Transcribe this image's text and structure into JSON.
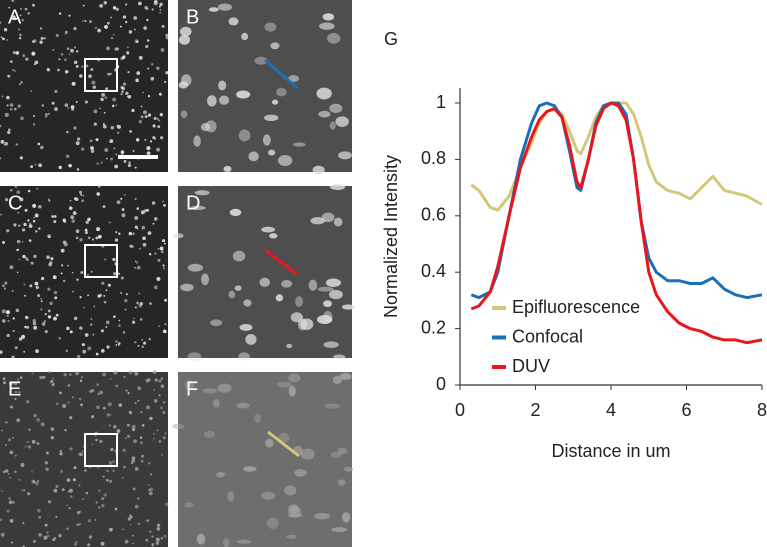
{
  "panels": [
    "A",
    "B",
    "C",
    "D",
    "E",
    "F"
  ],
  "chart_data": {
    "type": "line",
    "panel_label": "G",
    "x_label": "Distance in um",
    "y_label": "Normalized Intensity",
    "x": [
      0.3,
      0.5,
      0.8,
      1.0,
      1.3,
      1.6,
      1.9,
      2.1,
      2.3,
      2.5,
      2.7,
      2.9,
      3.1,
      3.2,
      3.4,
      3.6,
      3.8,
      4.0,
      4.2,
      4.4,
      4.6,
      4.8,
      5.0,
      5.2,
      5.5,
      5.8,
      6.1,
      6.4,
      6.7,
      7.0,
      7.3,
      7.6,
      8.0
    ],
    "series": [
      {
        "name": "Epifluorescence",
        "color": "#d4c77a",
        "values": [
          0.71,
          0.69,
          0.63,
          0.62,
          0.67,
          0.77,
          0.86,
          0.93,
          0.97,
          0.98,
          0.96,
          0.9,
          0.83,
          0.82,
          0.88,
          0.95,
          0.99,
          1.0,
          1.0,
          1.0,
          0.96,
          0.88,
          0.78,
          0.72,
          0.69,
          0.68,
          0.66,
          0.7,
          0.74,
          0.69,
          0.68,
          0.67,
          0.64
        ]
      },
      {
        "name": "Confocal",
        "color": "#1a70b8",
        "values": [
          0.32,
          0.31,
          0.33,
          0.4,
          0.6,
          0.8,
          0.93,
          0.99,
          1.0,
          0.99,
          0.95,
          0.83,
          0.7,
          0.69,
          0.8,
          0.93,
          0.99,
          1.0,
          1.0,
          0.96,
          0.8,
          0.58,
          0.45,
          0.4,
          0.37,
          0.37,
          0.36,
          0.36,
          0.38,
          0.34,
          0.32,
          0.31,
          0.32
        ]
      },
      {
        "name": "DUV",
        "color": "#e8171c",
        "values": [
          0.27,
          0.28,
          0.33,
          0.42,
          0.6,
          0.77,
          0.88,
          0.94,
          0.97,
          0.98,
          0.95,
          0.85,
          0.72,
          0.7,
          0.8,
          0.92,
          0.98,
          1.0,
          0.99,
          0.94,
          0.8,
          0.58,
          0.4,
          0.32,
          0.26,
          0.22,
          0.2,
          0.19,
          0.17,
          0.16,
          0.16,
          0.15,
          0.16
        ]
      }
    ],
    "xlim": [
      0,
      8
    ],
    "xticks": [
      0,
      2,
      4,
      6,
      8
    ],
    "ylim": [
      0,
      1
    ],
    "yticks": [
      0,
      0.2,
      0.4,
      0.6,
      0.8,
      1
    ],
    "legend": "lower-left",
    "grid": false
  }
}
